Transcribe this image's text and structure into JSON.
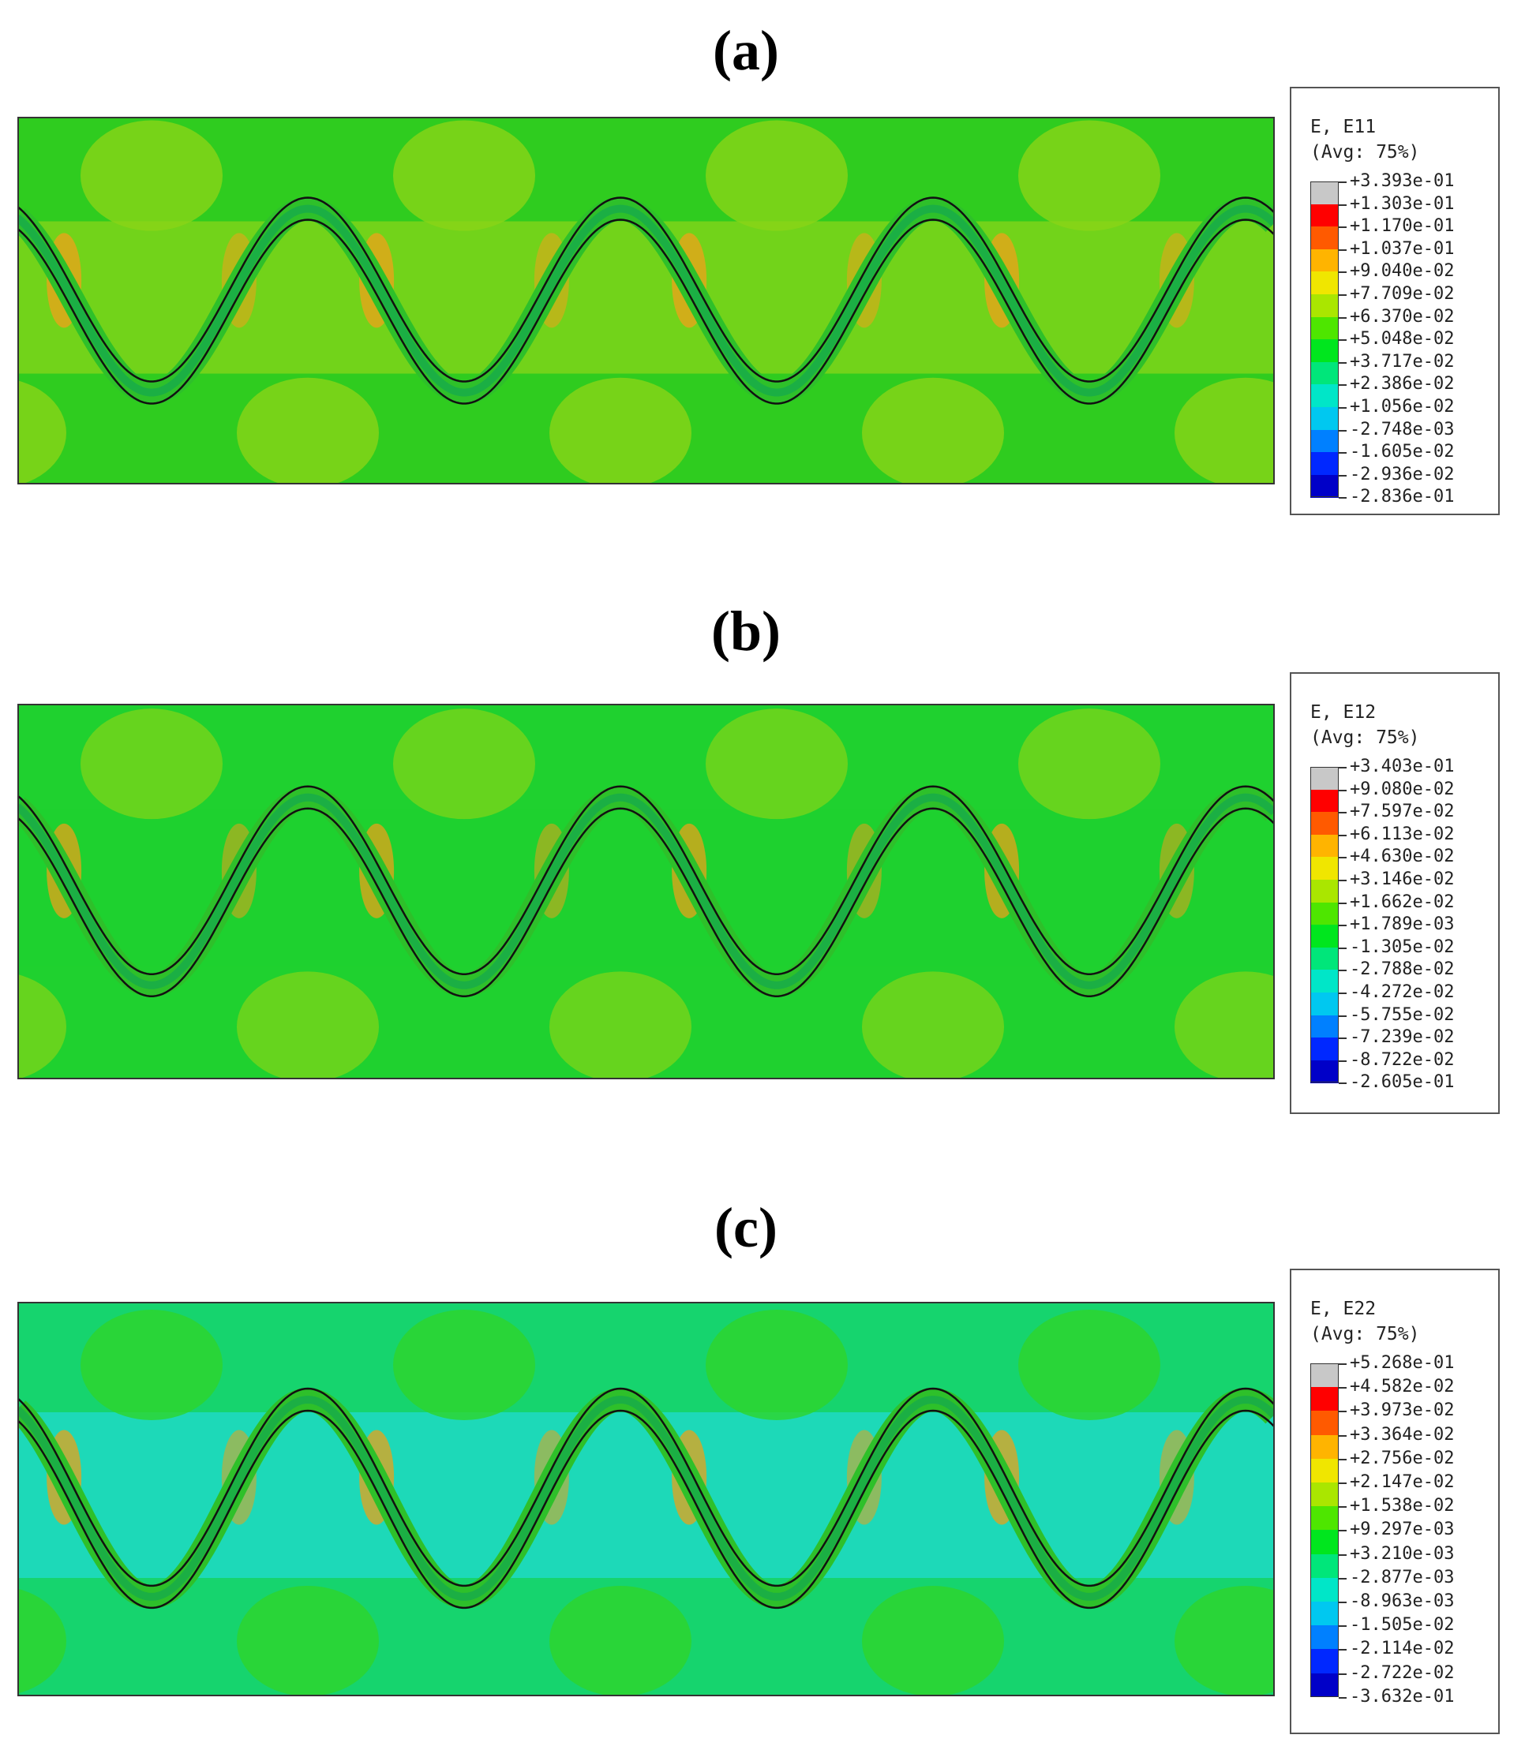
{
  "panels": [
    {
      "label": "(a)",
      "legend": {
        "title": "E, E11",
        "subtitle": "(Avg: 75%)",
        "values": [
          "+3.393e-01",
          "+1.303e-01",
          "+1.170e-01",
          "+1.037e-01",
          "+9.040e-02",
          "+7.709e-02",
          "+6.370e-02",
          "+5.048e-02",
          "+3.717e-02",
          "+2.386e-02",
          "+1.056e-02",
          "-2.748e-03",
          "-1.605e-02",
          "-2.936e-02",
          "-2.836e-01"
        ]
      },
      "field": {
        "background": "#2fcc1f",
        "mid_band": "#7ed41a",
        "lobe_color": "#8ad516",
        "accent": "#f0a21a",
        "bottom_color": "#22d435"
      }
    },
    {
      "label": "(b)",
      "legend": {
        "title": "E, E12",
        "subtitle": "(Avg: 75%)",
        "values": [
          "+3.403e-01",
          "+9.080e-02",
          "+7.597e-02",
          "+6.113e-02",
          "+4.630e-02",
          "+3.146e-02",
          "+1.662e-02",
          "+1.789e-03",
          "-1.305e-02",
          "-2.788e-02",
          "-4.272e-02",
          "-5.755e-02",
          "-7.239e-02",
          "-8.722e-02",
          "-2.605e-01"
        ]
      },
      "field": {
        "background": "#1fd12f",
        "mid_band": "#1fd12f",
        "lobe_color": "#78d41a",
        "accent": "#e8a21a",
        "bottom_color": "#1fd12f"
      }
    },
    {
      "label": "(c)",
      "legend": {
        "title": "E, E22",
        "subtitle": "(Avg: 75%)",
        "values": [
          "+5.268e-01",
          "+4.582e-02",
          "+3.973e-02",
          "+3.364e-02",
          "+2.756e-02",
          "+2.147e-02",
          "+1.538e-02",
          "+9.297e-03",
          "+3.210e-03",
          "-2.877e-03",
          "-8.963e-03",
          "-1.505e-02",
          "-2.114e-02",
          "-2.722e-02",
          "-3.632e-01"
        ]
      },
      "field": {
        "background": "#16d46e",
        "mid_band": "#1ed9c6",
        "lobe_color": "#2ed42a",
        "accent": "#e8a21a",
        "bottom_color": "#16d46e"
      }
    }
  ],
  "legend_colors": [
    "#c8c8c8",
    "#ff0000",
    "#ff5a00",
    "#ffb400",
    "#f0e600",
    "#aae600",
    "#4ee600",
    "#00e61e",
    "#00e67a",
    "#00e6c8",
    "#00c8f0",
    "#0080ff",
    "#0028ff",
    "#0000c8",
    "#3c3c3c"
  ]
}
